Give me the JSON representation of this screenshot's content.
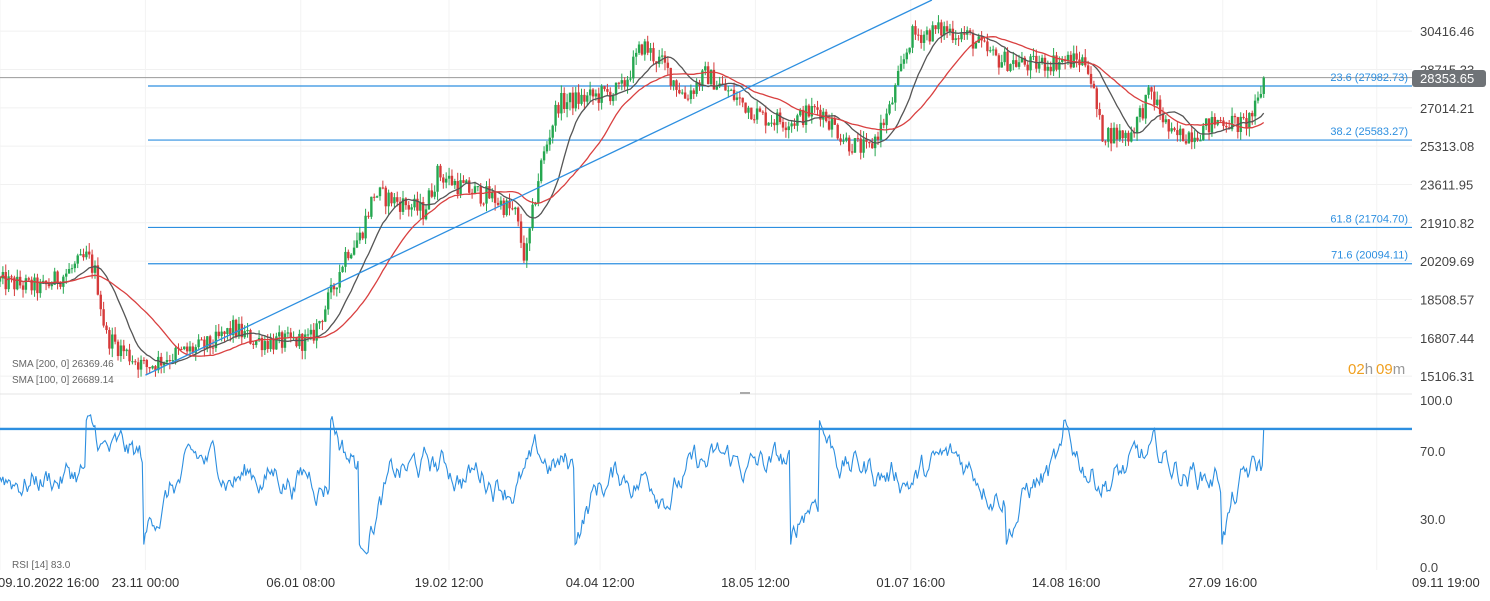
{
  "chart_data": [
    {
      "type": "candlestick",
      "ylim": [
        14400,
        31800
      ],
      "yticks": [
        "30416.46",
        "28715.33",
        "27014.21",
        "25313.08",
        "23611.95",
        "21910.82",
        "20209.69",
        "18508.57",
        "16807.44",
        "15106.31"
      ],
      "xticks": [
        "09.10.2022 16:00",
        "23.11 00:00",
        "06.01 08:00",
        "19.02 12:00",
        "04.04 12:00",
        "18.05 12:00",
        "01.07 16:00",
        "14.08 16:00",
        "27.09 16:00",
        "09.11 19:00"
      ],
      "last_price": "28353.65",
      "timer": {
        "hours": "02",
        "h": "h",
        "minutes": "09",
        "m": "m"
      },
      "fibonacci": [
        {
          "label": "23.6 (27982.73)",
          "value": 27982.73
        },
        {
          "label": "38.2 (25583.27)",
          "value": 25583.27
        },
        {
          "label": "61.8 (21704.70)",
          "value": 21704.7
        },
        {
          "label": "71.6 (20094.11)",
          "value": 20094.11
        }
      ],
      "trendline": {
        "from": [
          0.103,
          15150
        ],
        "to": [
          0.66,
          31800
        ]
      },
      "indicators": [
        {
          "label": "SMA [200, 0] 26369.46",
          "color": "#555555"
        },
        {
          "label": "SMA [100, 0] 26689.14",
          "color": "#d94040"
        }
      ],
      "price_path": [
        [
          0.0,
          19300
        ],
        [
          0.03,
          19000
        ],
        [
          0.05,
          19800
        ],
        [
          0.062,
          20400
        ],
        [
          0.068,
          19600
        ],
        [
          0.075,
          16900
        ],
        [
          0.09,
          16100
        ],
        [
          0.103,
          15500
        ],
        [
          0.12,
          16000
        ],
        [
          0.15,
          16500
        ],
        [
          0.165,
          17200
        ],
        [
          0.18,
          16700
        ],
        [
          0.2,
          16600
        ],
        [
          0.22,
          16700
        ],
        [
          0.235,
          18800
        ],
        [
          0.245,
          20600
        ],
        [
          0.255,
          21300
        ],
        [
          0.265,
          23200
        ],
        [
          0.28,
          22900
        ],
        [
          0.3,
          22400
        ],
        [
          0.31,
          24100
        ],
        [
          0.33,
          23400
        ],
        [
          0.35,
          23000
        ],
        [
          0.365,
          22300
        ],
        [
          0.372,
          20200
        ],
        [
          0.382,
          24200
        ],
        [
          0.395,
          27200
        ],
        [
          0.42,
          27500
        ],
        [
          0.44,
          27800
        ],
        [
          0.455,
          29800
        ],
        [
          0.47,
          28900
        ],
        [
          0.485,
          27500
        ],
        [
          0.5,
          28500
        ],
        [
          0.52,
          27500
        ],
        [
          0.54,
          26600
        ],
        [
          0.56,
          26400
        ],
        [
          0.58,
          27000
        ],
        [
          0.6,
          25500
        ],
        [
          0.615,
          25100
        ],
        [
          0.63,
          26900
        ],
        [
          0.645,
          30200
        ],
        [
          0.67,
          30500
        ],
        [
          0.685,
          30200
        ],
        [
          0.705,
          29200
        ],
        [
          0.73,
          28900
        ],
        [
          0.75,
          29100
        ],
        [
          0.77,
          29100
        ],
        [
          0.78,
          25900
        ],
        [
          0.8,
          25800
        ],
        [
          0.815,
          27700
        ],
        [
          0.83,
          25700
        ],
        [
          0.85,
          26000
        ],
        [
          0.865,
          26500
        ],
        [
          0.88,
          26200
        ],
        [
          0.89,
          27000
        ],
        [
          0.895,
          28353.65
        ]
      ]
    },
    {
      "type": "line",
      "label": "RSI [14] 83.0",
      "ylim": [
        0,
        100
      ],
      "yticks": [
        "100.0",
        "70.0",
        "30.0",
        "0.0"
      ],
      "overbought_line": 83,
      "last_value": 83.0
    }
  ]
}
